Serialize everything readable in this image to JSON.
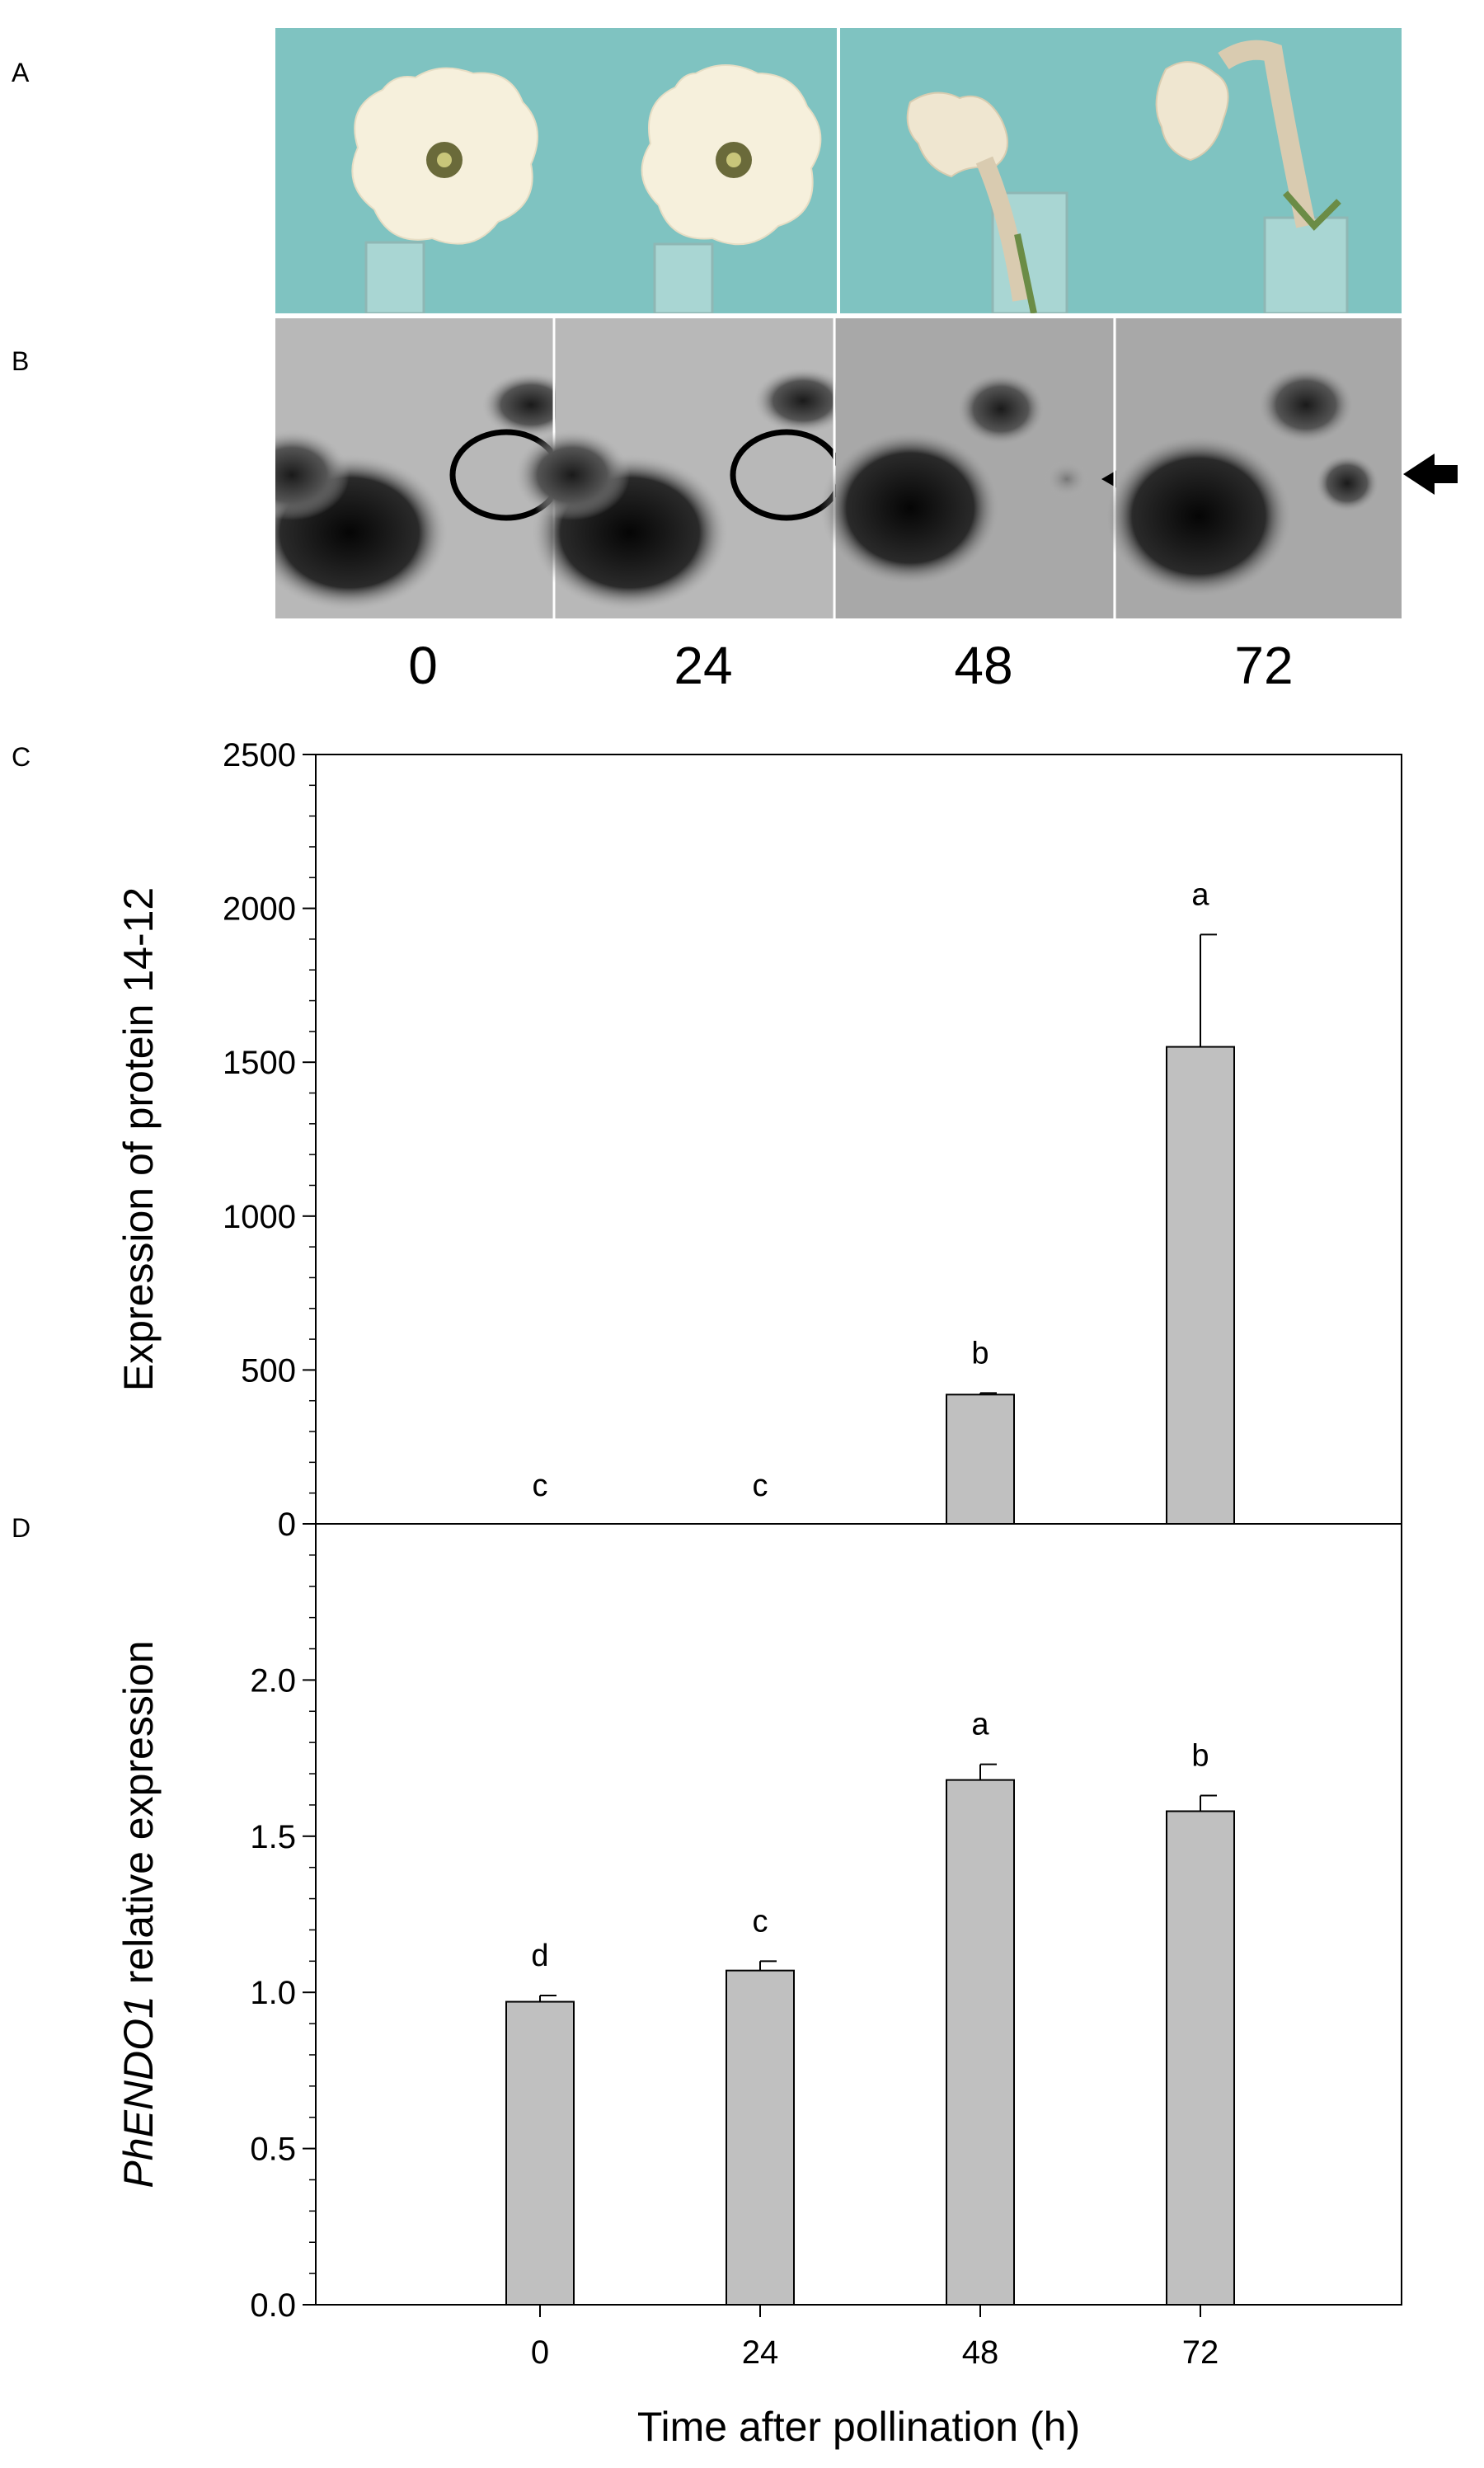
{
  "panels": {
    "a": "A",
    "b": "B",
    "c": "C",
    "d": "D"
  },
  "photo_times": [
    "0",
    "24",
    "48",
    "72"
  ],
  "colors": {
    "bar": "#c0c0c0",
    "photo_bg": "#7fc3c1",
    "petal": "#f6f0dc",
    "blot_bg": "#b4b4b4"
  },
  "chart_data": [
    {
      "type": "bar",
      "panel": "C",
      "categories": [
        "0",
        "24",
        "48",
        "72"
      ],
      "values": [
        0,
        0,
        420,
        1550
      ],
      "errors": [
        0,
        0,
        5,
        365
      ],
      "letters": [
        "c",
        "c",
        "b",
        "a"
      ],
      "ylabel": "Expression of protein 14-12",
      "ylim": [
        0,
        2500
      ],
      "yticks": [
        "0",
        "500",
        "1000",
        "1500",
        "2000",
        "2500"
      ],
      "ytick_values": [
        0,
        500,
        1000,
        1500,
        2000,
        2500
      ]
    },
    {
      "type": "bar",
      "panel": "D",
      "categories": [
        "0",
        "24",
        "48",
        "72"
      ],
      "values": [
        0.97,
        1.07,
        1.68,
        1.58
      ],
      "errors": [
        0.02,
        0.03,
        0.05,
        0.05
      ],
      "letters": [
        "d",
        "c",
        "a",
        "b"
      ],
      "ylabel_italic": "PhENDO1",
      "ylabel_rest": " relative expression",
      "xlabel": "Time after pollination (h)",
      "ylim": [
        0,
        2.5
      ],
      "yticks": [
        "0.0",
        "0.5",
        "1.0",
        "1.5",
        "2.0"
      ],
      "ytick_values": [
        0,
        0.5,
        1.0,
        1.5,
        2.0
      ]
    }
  ]
}
